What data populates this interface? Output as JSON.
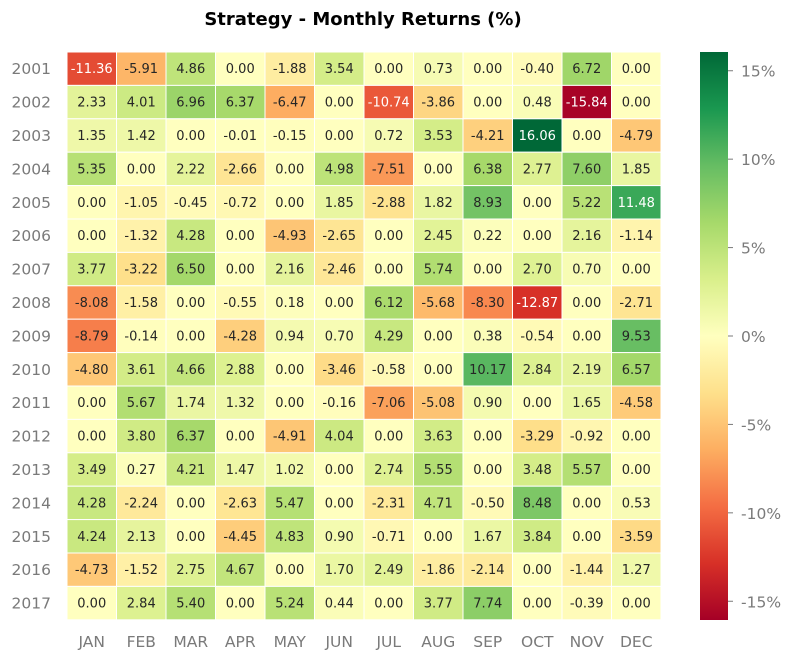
{
  "chart_data": {
    "type": "heatmap",
    "title": "Strategy - Monthly Returns (%)",
    "colormap": "RdYlGn",
    "vmin": -16.06,
    "vmax": 16.06,
    "rows": [
      "2001",
      "2002",
      "2003",
      "2004",
      "2005",
      "2006",
      "2007",
      "2008",
      "2009",
      "2010",
      "2011",
      "2012",
      "2013",
      "2014",
      "2015",
      "2016",
      "2017"
    ],
    "columns": [
      "JAN",
      "FEB",
      "MAR",
      "APR",
      "MAY",
      "JUN",
      "JUL",
      "AUG",
      "SEP",
      "OCT",
      "NOV",
      "DEC"
    ],
    "values": [
      [
        -11.36,
        -5.91,
        4.86,
        0.0,
        -1.88,
        3.54,
        0.0,
        0.73,
        0.0,
        -0.4,
        6.72,
        0.0
      ],
      [
        2.33,
        4.01,
        6.96,
        6.37,
        -6.47,
        0.0,
        -10.74,
        -3.86,
        0.0,
        0.48,
        -15.84,
        0.0
      ],
      [
        1.35,
        1.42,
        0.0,
        -0.01,
        -0.15,
        0.0,
        0.72,
        3.53,
        -4.21,
        16.06,
        0.0,
        -4.79
      ],
      [
        5.35,
        0.0,
        2.22,
        -2.66,
        0.0,
        4.98,
        -7.51,
        0.0,
        6.38,
        2.77,
        7.6,
        1.85
      ],
      [
        0.0,
        -1.05,
        -0.45,
        -0.72,
        0.0,
        1.85,
        -2.88,
        1.82,
        8.93,
        0.0,
        5.22,
        11.48
      ],
      [
        0.0,
        -1.32,
        4.28,
        0.0,
        -4.93,
        -2.65,
        0.0,
        2.45,
        0.22,
        0.0,
        2.16,
        -1.14
      ],
      [
        3.77,
        -3.22,
        6.5,
        0.0,
        2.16,
        -2.46,
        0.0,
        5.74,
        0.0,
        2.7,
        0.7,
        0.0
      ],
      [
        -8.08,
        -1.58,
        0.0,
        -0.55,
        0.18,
        0.0,
        6.12,
        -5.68,
        -8.3,
        -12.87,
        0.0,
        -2.71
      ],
      [
        -8.79,
        -0.14,
        0.0,
        -4.28,
        0.94,
        0.7,
        4.29,
        0.0,
        0.38,
        -0.54,
        0.0,
        9.53
      ],
      [
        -4.8,
        3.61,
        4.66,
        2.88,
        0.0,
        -3.46,
        -0.58,
        0.0,
        10.17,
        2.84,
        2.19,
        6.57
      ],
      [
        0.0,
        5.67,
        1.74,
        1.32,
        0.0,
        -0.16,
        -7.06,
        -5.08,
        0.9,
        0.0,
        1.65,
        -4.58
      ],
      [
        0.0,
        3.8,
        6.37,
        0.0,
        -4.91,
        4.04,
        0.0,
        3.63,
        0.0,
        -3.29,
        -0.92,
        0.0
      ],
      [
        3.49,
        0.27,
        4.21,
        1.47,
        1.02,
        0.0,
        2.74,
        5.55,
        0.0,
        3.48,
        5.57,
        0.0
      ],
      [
        4.28,
        -2.24,
        0.0,
        -2.63,
        5.47,
        0.0,
        -2.31,
        4.71,
        -0.5,
        8.48,
        0.0,
        0.53
      ],
      [
        4.24,
        2.13,
        0.0,
        -4.45,
        4.83,
        0.9,
        -0.71,
        0.0,
        1.67,
        3.84,
        0.0,
        -3.59
      ],
      [
        -4.73,
        -1.52,
        2.75,
        4.67,
        0.0,
        1.7,
        2.49,
        -1.86,
        -2.14,
        0.0,
        -1.44,
        1.27
      ],
      [
        0.0,
        2.84,
        5.4,
        0.0,
        5.24,
        0.44,
        0.0,
        3.77,
        7.74,
        0.0,
        -0.39,
        0.0
      ]
    ],
    "colorbar": {
      "ticks": [
        15,
        10,
        5,
        0,
        -5,
        -10,
        -15
      ],
      "tick_labels": [
        "15%",
        "10%",
        "5%",
        "0%",
        "-5%",
        "-10%",
        "-15%"
      ]
    }
  }
}
